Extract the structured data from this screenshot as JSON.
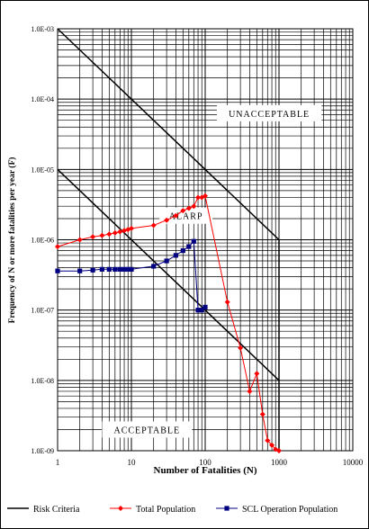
{
  "chart_data": {
    "type": "line",
    "xscale": "log",
    "yscale": "log",
    "xlim": [
      1,
      10000
    ],
    "ylim": [
      1e-09,
      0.001
    ],
    "grid": true,
    "legend_position": "bottom",
    "xlabel": "Number of Fatalities (N)",
    "ylabel": "Frequency of N or more fatalities per year (F)",
    "x_tick_labels": [
      "1",
      "10",
      "100",
      "1000",
      "10000"
    ],
    "x_tick_values": [
      1,
      10,
      100,
      1000,
      10000
    ],
    "y_tick_labels": [
      "1.0E-09",
      "1.0E-08",
      "1.0E-07",
      "1.0E-06",
      "1.0E-05",
      "1.0E-04",
      "1.0E-03"
    ],
    "y_tick_values": [
      1e-09,
      1e-08,
      1e-07,
      1e-06,
      1e-05,
      0.0001,
      0.001
    ],
    "annotations": [
      {
        "text": "UNACCEPTABLE",
        "x": 180,
        "y": 6.3e-05
      },
      {
        "text": "ALARP",
        "x": 30,
        "y": 2.2e-06
      },
      {
        "text": "ACCEPTABLE",
        "x": 5,
        "y": 2e-09
      }
    ],
    "risk_criteria": [
      {
        "x": [
          1,
          1000
        ],
        "y": [
          0.001,
          1e-06
        ]
      },
      {
        "x": [
          1,
          1000
        ],
        "y": [
          1e-05,
          1e-08
        ]
      },
      {
        "x": [
          1000,
          1000
        ],
        "y": [
          1e-06,
          1e-09
        ]
      }
    ],
    "series": [
      {
        "name": "Risk Criteria",
        "color": "#000000",
        "marker": "none"
      },
      {
        "name": "Total Population",
        "color": "#ff0000",
        "marker": "diamond",
        "x": [
          1,
          2,
          3,
          4,
          5,
          6,
          7,
          8,
          9,
          10,
          20,
          30,
          40,
          50,
          60,
          70,
          80,
          90,
          100,
          200,
          300,
          400,
          500,
          600,
          700,
          800,
          900,
          1000
        ],
        "y": [
          8e-07,
          1e-06,
          1.1e-06,
          1.15e-06,
          1.2e-06,
          1.25e-06,
          1.3e-06,
          1.35e-06,
          1.4e-06,
          1.45e-06,
          1.6e-06,
          1.9e-06,
          2.2e-06,
          2.6e-06,
          2.8e-06,
          3e-06,
          4e-06,
          4e-06,
          4.2e-06,
          1.3e-07,
          2.9e-08,
          7e-09,
          1.25e-08,
          3.3e-09,
          1.4e-09,
          1.2e-09,
          1.05e-09,
          1e-09
        ]
      },
      {
        "name": "SCL Operation Population",
        "color": "#000080",
        "marker": "square",
        "x": [
          1,
          2,
          3,
          4,
          5,
          6,
          7,
          8,
          9,
          10,
          20,
          30,
          40,
          50,
          60,
          70,
          80,
          90,
          100
        ],
        "y": [
          3.6e-07,
          3.6e-07,
          3.7e-07,
          3.8e-07,
          3.8e-07,
          3.8e-07,
          3.8e-07,
          3.8e-07,
          3.8e-07,
          3.8e-07,
          4.2e-07,
          5e-07,
          6e-07,
          7e-07,
          8e-07,
          9.5e-07,
          1e-07,
          1e-07,
          1.1e-07
        ]
      }
    ]
  }
}
